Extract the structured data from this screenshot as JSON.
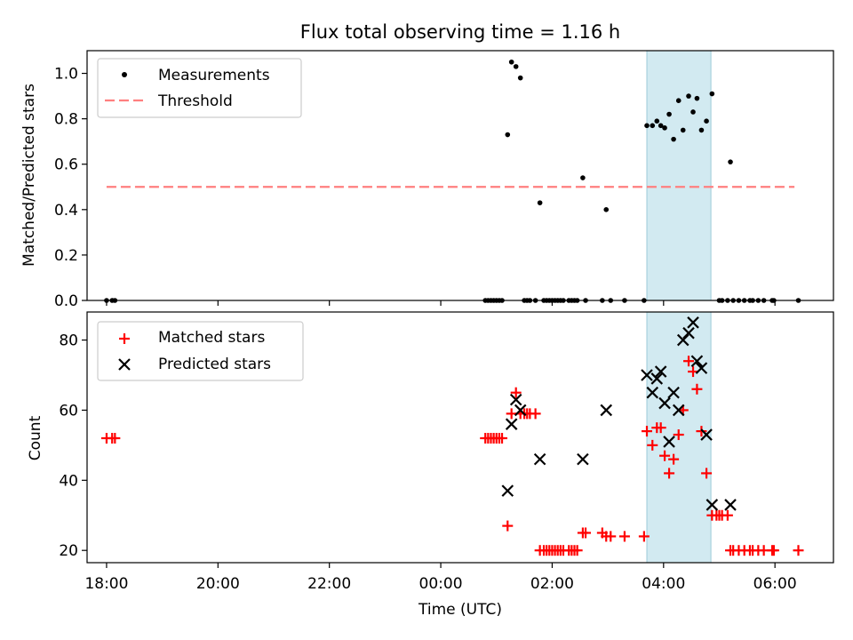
{
  "chart_data": [
    {
      "type": "scatter",
      "title": "Flux total observing time = 1.16 h",
      "xlabel": "",
      "ylabel": "Matched/Predicted stars",
      "x_unit": "hours since 00:00 UTC",
      "xlim": [
        -6.35,
        7.05
      ],
      "ylim": [
        0,
        1.1
      ],
      "yticks": [
        0.0,
        0.2,
        0.4,
        0.6,
        0.8,
        1.0
      ],
      "ytick_labels": [
        "0.0",
        "0.2",
        "0.4",
        "0.6",
        "0.8",
        "1.0"
      ],
      "xticks": [
        -6,
        -4,
        -2,
        0,
        2,
        4,
        6
      ],
      "highlight_span": [
        3.7,
        4.85
      ],
      "legend": {
        "position": "top-left",
        "entries": [
          "Measurements",
          "Threshold"
        ]
      },
      "threshold": {
        "name": "Threshold",
        "y": 0.5,
        "x_range": [
          -6,
          6.35
        ],
        "color": "#ff7f7f"
      },
      "series": [
        {
          "name": "Measurements",
          "marker": "dot",
          "color": "#000000",
          "points": [
            [
              -6.0,
              0
            ],
            [
              -5.9,
              0
            ],
            [
              -5.85,
              0
            ],
            [
              0.8,
              0
            ],
            [
              0.85,
              0
            ],
            [
              0.9,
              0
            ],
            [
              0.95,
              0
            ],
            [
              1.0,
              0
            ],
            [
              1.05,
              0
            ],
            [
              1.1,
              0
            ],
            [
              1.2,
              0.73
            ],
            [
              1.27,
              1.05
            ],
            [
              1.35,
              1.03
            ],
            [
              1.43,
              0.98
            ],
            [
              1.5,
              0
            ],
            [
              1.55,
              0
            ],
            [
              1.6,
              0
            ],
            [
              1.7,
              0
            ],
            [
              1.78,
              0.43
            ],
            [
              1.85,
              0
            ],
            [
              1.9,
              0
            ],
            [
              1.95,
              0
            ],
            [
              2.0,
              0
            ],
            [
              2.05,
              0
            ],
            [
              2.1,
              0
            ],
            [
              2.15,
              0
            ],
            [
              2.2,
              0
            ],
            [
              2.3,
              0
            ],
            [
              2.35,
              0
            ],
            [
              2.4,
              0
            ],
            [
              2.45,
              0
            ],
            [
              2.55,
              0.54
            ],
            [
              2.6,
              0
            ],
            [
              2.9,
              0
            ],
            [
              2.97,
              0.4
            ],
            [
              3.05,
              0
            ],
            [
              3.3,
              0
            ],
            [
              3.65,
              0
            ],
            [
              3.7,
              0.77
            ],
            [
              3.8,
              0.77
            ],
            [
              3.88,
              0.79
            ],
            [
              3.95,
              0.77
            ],
            [
              4.02,
              0.76
            ],
            [
              4.1,
              0.82
            ],
            [
              4.18,
              0.71
            ],
            [
              4.27,
              0.88
            ],
            [
              4.35,
              0.75
            ],
            [
              4.45,
              0.9
            ],
            [
              4.53,
              0.83
            ],
            [
              4.6,
              0.89
            ],
            [
              4.68,
              0.75
            ],
            [
              4.77,
              0.79
            ],
            [
              4.87,
              0.91
            ],
            [
              5.0,
              0
            ],
            [
              5.05,
              0
            ],
            [
              5.15,
              0
            ],
            [
              5.2,
              0.61
            ],
            [
              5.25,
              0
            ],
            [
              5.35,
              0
            ],
            [
              5.45,
              0
            ],
            [
              5.55,
              0
            ],
            [
              5.6,
              0
            ],
            [
              5.7,
              0
            ],
            [
              5.8,
              0
            ],
            [
              5.95,
              0
            ],
            [
              5.98,
              0
            ],
            [
              6.42,
              0
            ]
          ]
        }
      ]
    },
    {
      "type": "scatter",
      "title": "",
      "xlabel": "Time (UTC)",
      "ylabel": "Count",
      "x_unit": "hours since 00:00 UTC",
      "xlim": [
        -6.35,
        7.05
      ],
      "ylim": [
        16.5,
        88
      ],
      "yticks": [
        20,
        40,
        60,
        80
      ],
      "ytick_labels": [
        "20",
        "40",
        "60",
        "80"
      ],
      "xticks": [
        -6,
        -4,
        -2,
        0,
        2,
        4,
        6
      ],
      "xtick_labels": [
        "18:00",
        "20:00",
        "22:00",
        "00:00",
        "02:00",
        "04:00",
        "06:00"
      ],
      "highlight_span": [
        3.7,
        4.85
      ],
      "legend": {
        "position": "top-left",
        "entries": [
          "Matched stars",
          "Predicted stars"
        ]
      },
      "series": [
        {
          "name": "Matched stars",
          "marker": "plus",
          "color": "#ff0000",
          "points": [
            [
              -6.0,
              52
            ],
            [
              -5.9,
              52
            ],
            [
              -5.85,
              52
            ],
            [
              0.8,
              52
            ],
            [
              0.85,
              52
            ],
            [
              0.9,
              52
            ],
            [
              0.95,
              52
            ],
            [
              1.0,
              52
            ],
            [
              1.05,
              52
            ],
            [
              1.1,
              52
            ],
            [
              1.2,
              27
            ],
            [
              1.27,
              59
            ],
            [
              1.35,
              65
            ],
            [
              1.43,
              59
            ],
            [
              1.5,
              59
            ],
            [
              1.55,
              59
            ],
            [
              1.6,
              59
            ],
            [
              1.7,
              59
            ],
            [
              1.78,
              20
            ],
            [
              1.85,
              20
            ],
            [
              1.9,
              20
            ],
            [
              1.95,
              20
            ],
            [
              2.0,
              20
            ],
            [
              2.05,
              20
            ],
            [
              2.1,
              20
            ],
            [
              2.15,
              20
            ],
            [
              2.2,
              20
            ],
            [
              2.3,
              20
            ],
            [
              2.35,
              20
            ],
            [
              2.4,
              20
            ],
            [
              2.45,
              20
            ],
            [
              2.55,
              25
            ],
            [
              2.6,
              25
            ],
            [
              2.9,
              25
            ],
            [
              2.97,
              24
            ],
            [
              3.05,
              24
            ],
            [
              3.3,
              24
            ],
            [
              3.65,
              24
            ],
            [
              3.7,
              54
            ],
            [
              3.8,
              50
            ],
            [
              3.88,
              55
            ],
            [
              3.95,
              55
            ],
            [
              4.02,
              47
            ],
            [
              4.1,
              42
            ],
            [
              4.18,
              46
            ],
            [
              4.27,
              53
            ],
            [
              4.35,
              60
            ],
            [
              4.45,
              74
            ],
            [
              4.53,
              71
            ],
            [
              4.6,
              66
            ],
            [
              4.68,
              54
            ],
            [
              4.77,
              42
            ],
            [
              4.87,
              30
            ],
            [
              4.95,
              30
            ],
            [
              5.0,
              30
            ],
            [
              5.05,
              30
            ],
            [
              5.15,
              30
            ],
            [
              5.2,
              20
            ],
            [
              5.25,
              20
            ],
            [
              5.35,
              20
            ],
            [
              5.45,
              20
            ],
            [
              5.55,
              20
            ],
            [
              5.6,
              20
            ],
            [
              5.7,
              20
            ],
            [
              5.8,
              20
            ],
            [
              5.95,
              20
            ],
            [
              5.98,
              20
            ],
            [
              6.42,
              20
            ]
          ]
        },
        {
          "name": "Predicted stars",
          "marker": "x",
          "color": "#000000",
          "points": [
            [
              1.2,
              37
            ],
            [
              1.27,
              56
            ],
            [
              1.35,
              63
            ],
            [
              1.43,
              60
            ],
            [
              1.78,
              46
            ],
            [
              2.55,
              46
            ],
            [
              2.97,
              60
            ],
            [
              3.7,
              70
            ],
            [
              3.8,
              65
            ],
            [
              3.88,
              69
            ],
            [
              3.95,
              71
            ],
            [
              4.02,
              62
            ],
            [
              4.1,
              51
            ],
            [
              4.18,
              65
            ],
            [
              4.27,
              60
            ],
            [
              4.35,
              80
            ],
            [
              4.45,
              82
            ],
            [
              4.53,
              85
            ],
            [
              4.6,
              74
            ],
            [
              4.68,
              72
            ],
            [
              4.77,
              53
            ],
            [
              4.87,
              33
            ],
            [
              5.2,
              33
            ]
          ]
        }
      ]
    }
  ]
}
